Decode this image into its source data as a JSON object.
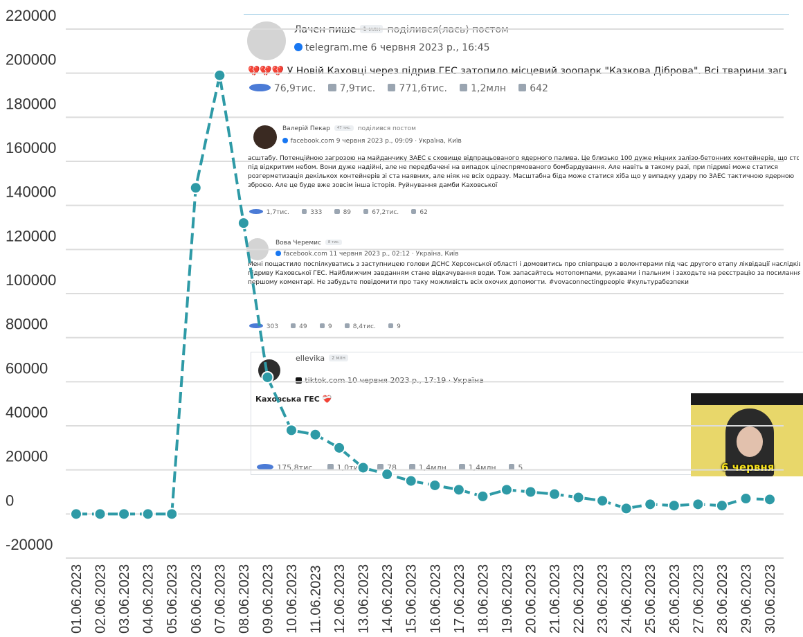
{
  "chart_data": {
    "type": "line",
    "categories": [
      "01.06.2023",
      "02.06.2023",
      "03.06.2023",
      "04.06.2023",
      "05.06.2023",
      "06.06.2023",
      "07.06.2023",
      "08.06.2023",
      "09.06.2023",
      "10.06.2023",
      "11.06.2023",
      "12.06.2023",
      "13.06.2023",
      "14.06.2023",
      "15.06.2023",
      "16.06.2023",
      "17.06.2023",
      "18.06.2023",
      "19.06.2023",
      "20.06.2023",
      "21.06.2023",
      "22.06.2023",
      "23.06.2023",
      "24.06.2023",
      "25.06.2023",
      "26.06.2023",
      "27.06.2023",
      "28.06.2023",
      "29.06.2023",
      "30.06.2023"
    ],
    "values": [
      0,
      0,
      0,
      0,
      0,
      148000,
      199000,
      132000,
      62000,
      38000,
      36000,
      30000,
      21000,
      18000,
      15000,
      13000,
      11000,
      8000,
      11000,
      10000,
      9000,
      7500,
      6000,
      2500,
      4400,
      3800,
      4400,
      3800,
      7000,
      6600
    ],
    "color": "#2e9aa6",
    "ylim": [
      -20000,
      220000
    ],
    "yticks": [
      -20000,
      0,
      20000,
      40000,
      60000,
      80000,
      100000,
      120000,
      140000,
      160000,
      180000,
      200000,
      220000
    ],
    "grid": true
  },
  "posts": [
    {
      "author": "Лачен пише",
      "followers": "1 млн",
      "action": "поділився(лась) постом",
      "source": "telegram.me",
      "date": "6 червня 2023 р., 16:45",
      "text": [
        "💔💔💔 У Новій Каховці через підрив ГЕС затопило місцевий зоопарк \"Казкова Діброва\". Всі тварини загинули"
      ],
      "stats": [
        "76,9тис.",
        "7,9тис.",
        "771,6тис.",
        "1,2млн",
        "642"
      ]
    },
    {
      "author": "Валерій Пекар",
      "followers": "47 тис.",
      "action": "поділився постом",
      "source": "facebook.com",
      "date": "9 червня 2023 р., 09:09",
      "location": "Україна, Київ",
      "text": [
        "асштабу. Потенційною загрозою на майданчику ЗАЕС є сховище відпрацьованого ядерного палива. Це близько 100 дуже міцних залізо-бетонних контейнерів, що стоять",
        "під відкритим небом. Вони дуже надійні, але не передбачені на випадок цілеспрямованого бомбардування. Але навіть в такому разі, при підриві може статися",
        "розгерметизація декількох контейнерів зі ста наявних, але ніяк не всіх одразу. Масштабна біда може статися хіба що у випадку удару по ЗАЕС тактичною ядерною",
        "зброєю. Але це буде вже зовсім інша історія. Руйнування дамби Каховської"
      ],
      "stats": [
        "1,7тис.",
        "333",
        "89",
        "67,2тис.",
        "62"
      ]
    },
    {
      "author": "Вова Черемис",
      "followers": "8 тис.",
      "source": "facebook.com",
      "date": "11 червня 2023 р., 02:12",
      "location": "Україна, Київ",
      "text": [
        "Мені пощастило поспілкуватись з заступницею голови ДСНС Херсонської області і домовитись про співпрацю з волонтерами під час другого етапу ліквідації наслідків",
        "підриву Каховської ГЕС. Найближчим завданням стане відкачування води. Тож запасайтесь мотопомпами, рукавами і пальним і заходьте на реєстрацію за посиланням в",
        "першому коментарі. Не забудьте повідомити про таку можливість всіх охочих допомогти. #vovaconnectingpeople #культурабезпеки"
      ],
      "stats": [
        "303",
        "49",
        "9",
        "8,4тис.",
        "9"
      ]
    },
    {
      "author": "ellevika",
      "followers": "2 млн",
      "source": "tiktok.com",
      "date": "10 червня 2023 р., 17:19",
      "location": "Україна",
      "text": [
        "Каховська ГЕС ❤️‍🩹"
      ],
      "stats": [
        "175,8тис.",
        "1,0тис.",
        "78",
        "1,4млн",
        "1,4млн",
        "5"
      ],
      "thumbnail_caption": "6 червня"
    }
  ]
}
